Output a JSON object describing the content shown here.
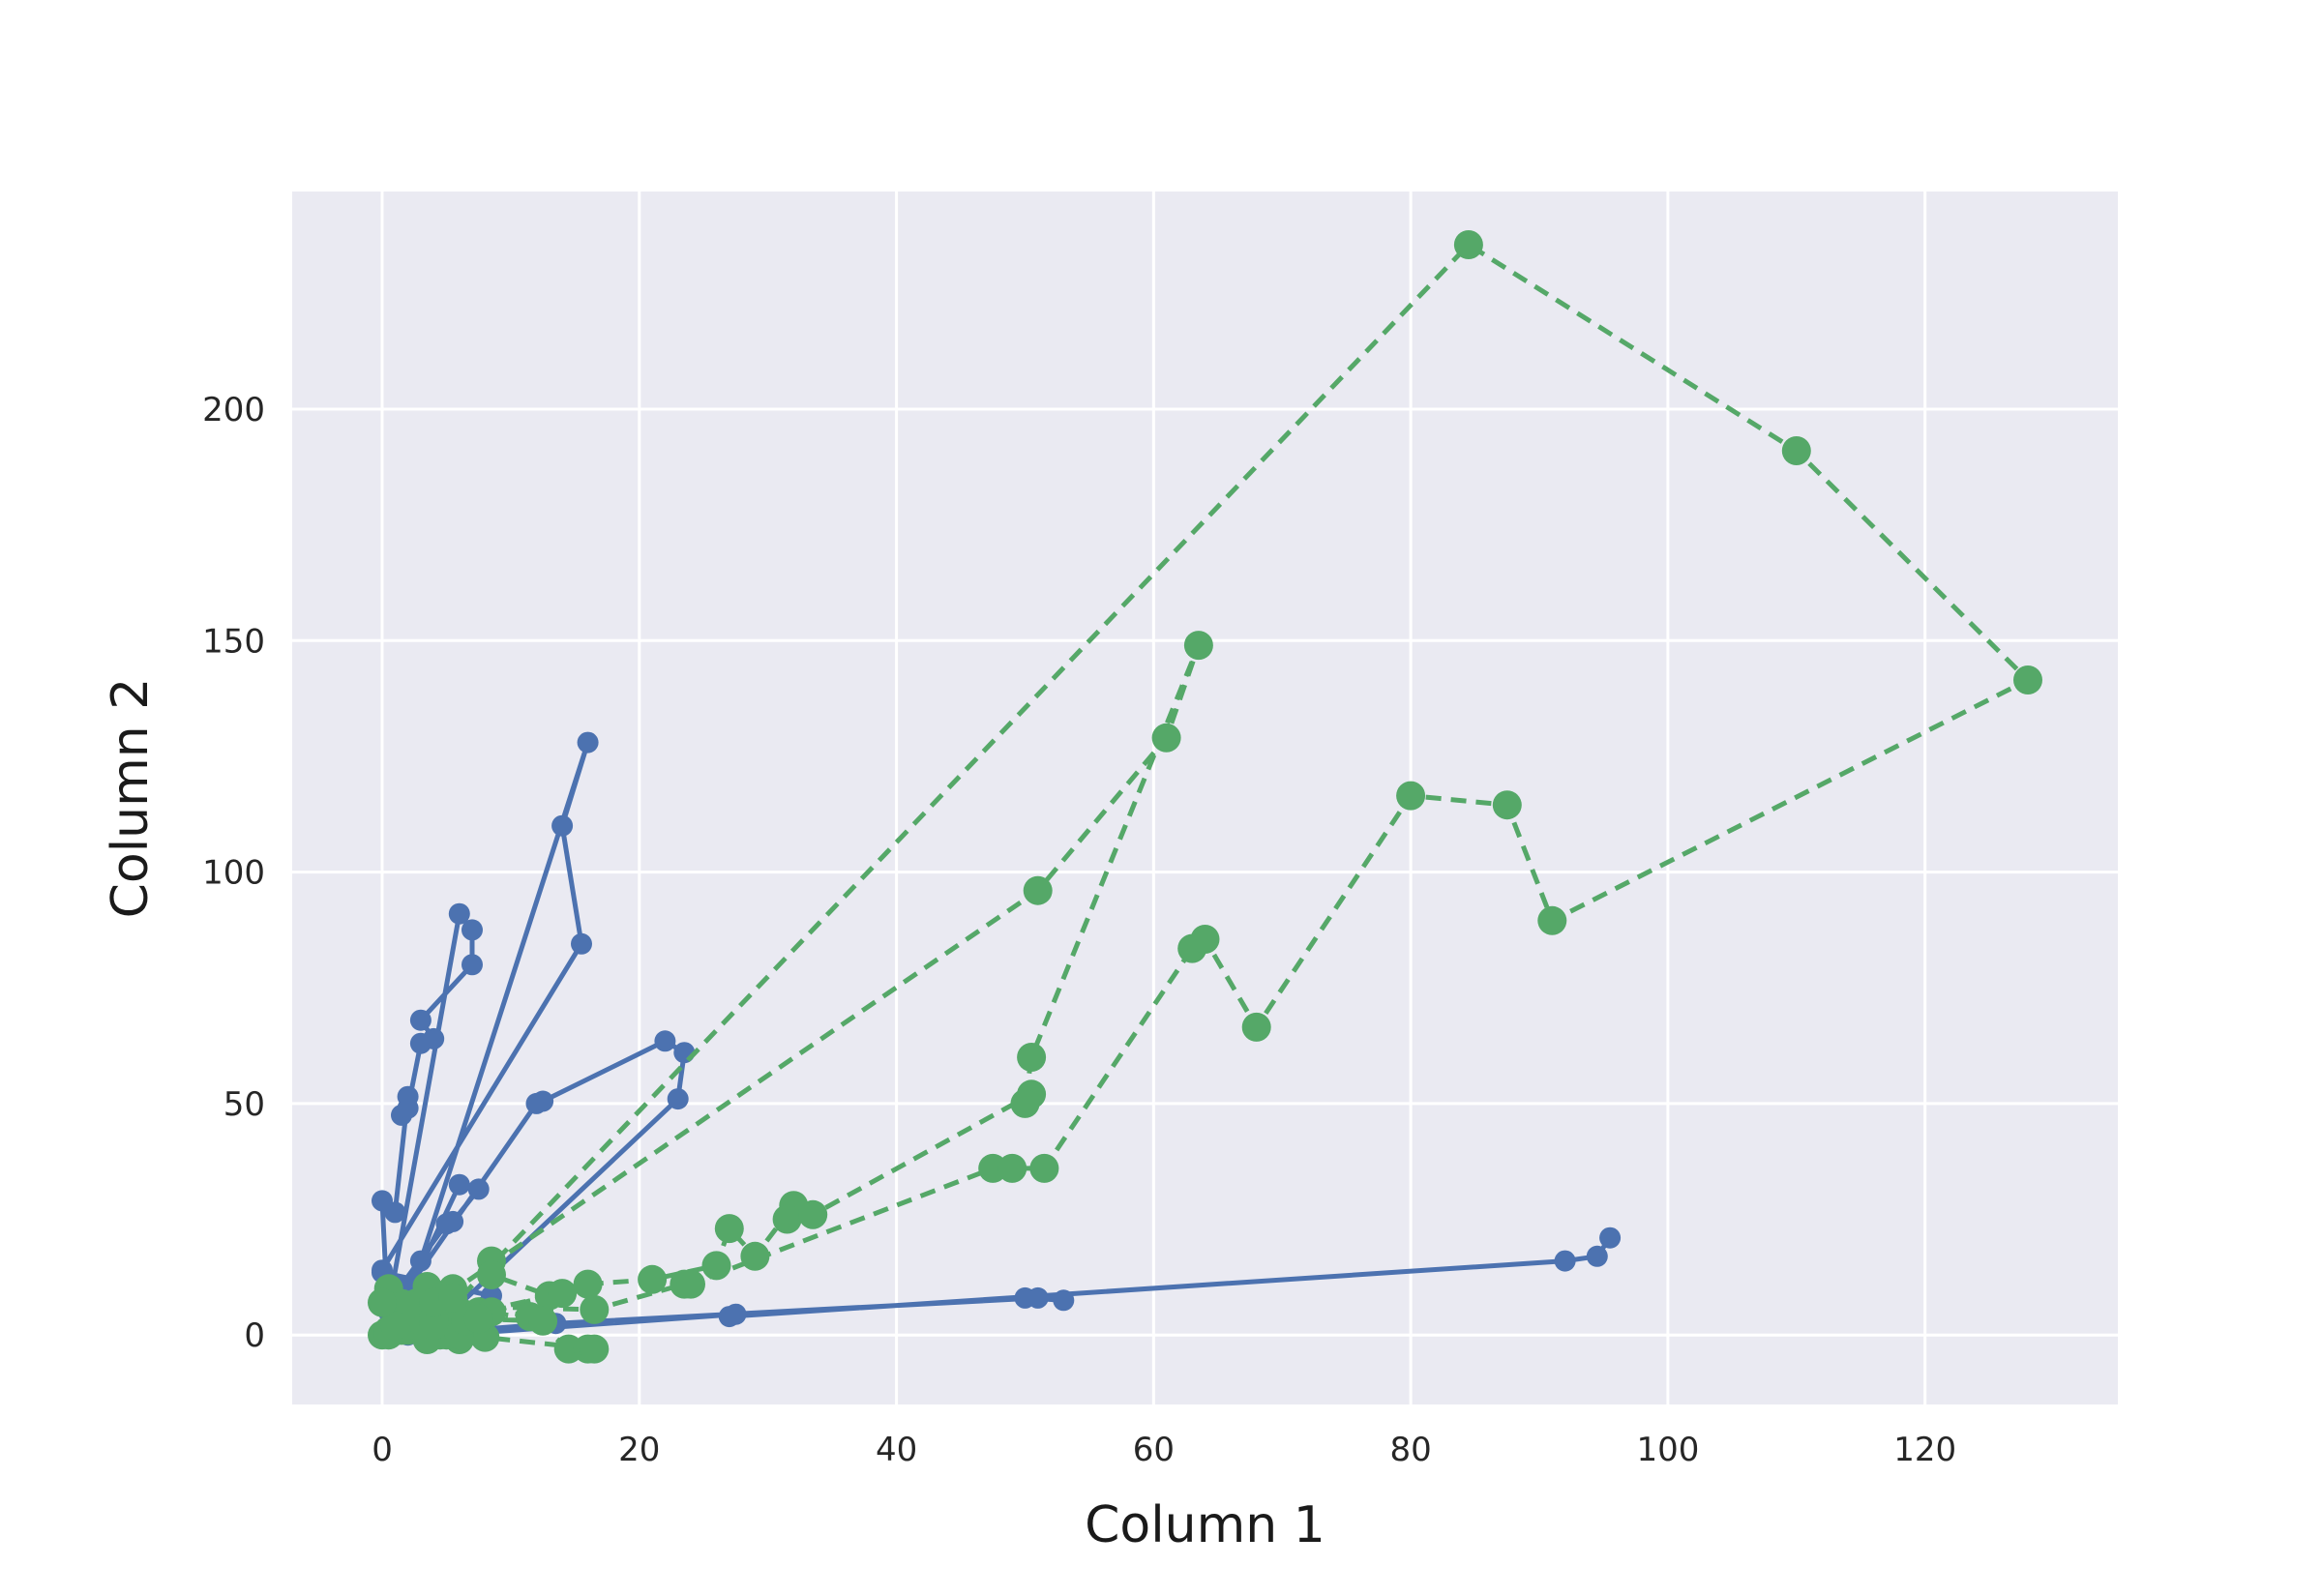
{
  "chart_data": {
    "type": "line",
    "title": "",
    "xlabel": "Column 1",
    "ylabel": "Column 2",
    "xlim": [
      -7,
      135
    ],
    "ylim": [
      -15,
      247
    ],
    "xticks": [
      0,
      20,
      40,
      60,
      80,
      100,
      120
    ],
    "yticks": [
      0,
      50,
      100,
      150,
      200
    ],
    "grid": true,
    "legend": "none",
    "colors": {
      "background": "#eaeaf2",
      "grid": "#ffffff"
    },
    "series": [
      {
        "color": "#4c72b0",
        "linestyle": "solid",
        "marker_size": 11,
        "points": [
          [
            95.5,
            21
          ],
          [
            94.5,
            17
          ],
          [
            92,
            16
          ],
          [
            27,
            4
          ],
          [
            27.5,
            4.5
          ],
          [
            5,
            0
          ],
          [
            0.5,
            5
          ],
          [
            0.5,
            0.5
          ],
          [
            8.5,
            8.5
          ],
          [
            0,
            13.5
          ],
          [
            2.5,
            11
          ],
          [
            4.5,
            0
          ],
          [
            6,
            0
          ],
          [
            0.5,
            2
          ],
          [
            1,
            0
          ],
          [
            5,
            2.5
          ],
          [
            0,
            14
          ],
          [
            15.5,
            84.5
          ],
          [
            14,
            110
          ],
          [
            16,
            128
          ],
          [
            3,
            16
          ],
          [
            1,
            3
          ],
          [
            0.5,
            7
          ],
          [
            5,
            24
          ],
          [
            5.5,
            24.5
          ],
          [
            7.5,
            31.5
          ],
          [
            6,
            32.5
          ],
          [
            1.5,
            6
          ],
          [
            0.5,
            0.5
          ],
          [
            0,
            29
          ],
          [
            1,
            26.5
          ],
          [
            2,
            51.5
          ],
          [
            1.5,
            47.5
          ],
          [
            2,
            49
          ],
          [
            3,
            63
          ],
          [
            4,
            64
          ],
          [
            3,
            68
          ],
          [
            7,
            80
          ],
          [
            7,
            87.5
          ],
          [
            6,
            91
          ],
          [
            0.5,
            6
          ],
          [
            2,
            6.5
          ],
          [
            3.5,
            0
          ],
          [
            23,
            51
          ],
          [
            23.5,
            61
          ],
          [
            22,
            63.5
          ],
          [
            12.5,
            50.5
          ],
          [
            12,
            50
          ],
          [
            2,
            10
          ],
          [
            3.5,
            1
          ],
          [
            6,
            3
          ],
          [
            2,
            0
          ],
          [
            13.5,
            2.5
          ],
          [
            51,
            8
          ],
          [
            50,
            8
          ],
          [
            53,
            7.5
          ]
        ]
      },
      {
        "color": "#55a868",
        "linestyle": "dashed",
        "marker_size": 15,
        "points": [
          [
            8.5,
            16
          ],
          [
            8.5,
            13
          ],
          [
            13,
            8.5
          ],
          [
            14,
            9
          ],
          [
            7.5,
            5
          ],
          [
            3,
            2
          ],
          [
            6,
            -1
          ],
          [
            4.5,
            0
          ],
          [
            0,
            0
          ],
          [
            2,
            1
          ],
          [
            0.5,
            10
          ],
          [
            11.5,
            4
          ],
          [
            14.5,
            -3
          ],
          [
            16,
            -3
          ],
          [
            16.5,
            -3
          ],
          [
            8,
            -0.5
          ],
          [
            3.5,
            0
          ],
          [
            0.5,
            1
          ],
          [
            6,
            3
          ],
          [
            16,
            11
          ],
          [
            21,
            12
          ],
          [
            26,
            15
          ],
          [
            27,
            23
          ],
          [
            29,
            17
          ],
          [
            32,
            28
          ],
          [
            31.5,
            25
          ],
          [
            33.5,
            26
          ],
          [
            50.5,
            52
          ],
          [
            50,
            50
          ],
          [
            50.5,
            60
          ],
          [
            63.5,
            149
          ],
          [
            61,
            129
          ],
          [
            51,
            96
          ],
          [
            0.5,
            0
          ],
          [
            1,
            6
          ],
          [
            5.5,
            10
          ],
          [
            1.5,
            1
          ],
          [
            3,
            3
          ],
          [
            5,
            0
          ],
          [
            4,
            3.5
          ],
          [
            3.5,
            -1
          ],
          [
            6,
            0
          ],
          [
            7.5,
            5
          ],
          [
            6.5,
            3
          ],
          [
            2,
            6.5
          ],
          [
            16.5,
            5.5
          ],
          [
            23.5,
            11
          ],
          [
            24,
            11
          ],
          [
            47.5,
            36
          ],
          [
            49,
            36
          ],
          [
            51.5,
            36
          ],
          [
            63,
            83.5
          ],
          [
            64,
            85.5
          ],
          [
            68,
            66.5
          ],
          [
            80,
            116.5
          ],
          [
            87.5,
            114.5
          ],
          [
            91,
            89.5
          ],
          [
            128,
            141.5
          ],
          [
            110,
            191
          ],
          [
            84.5,
            235.5
          ],
          [
            4,
            2
          ],
          [
            1,
            2
          ],
          [
            0,
            7
          ],
          [
            3.5,
            10.5
          ],
          [
            8.5,
            5
          ],
          [
            7.5,
            3.5
          ],
          [
            12.5,
            3
          ],
          [
            4,
            7
          ],
          [
            5.5,
            8
          ]
        ]
      }
    ]
  }
}
